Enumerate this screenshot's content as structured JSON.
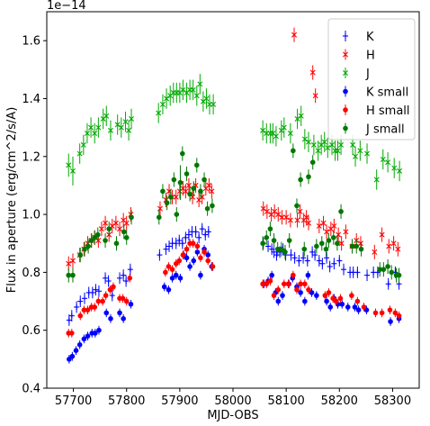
{
  "chart_data": {
    "type": "scatter",
    "xlabel": "MJD-OBS",
    "ylabel": "Flux in aperture (erg/cm^2/s/A)",
    "y_offset_label": "1e−14",
    "xlim": [
      57650,
      58350
    ],
    "ylim": [
      0.4,
      1.7
    ],
    "x_ticks": [
      57700,
      57800,
      57900,
      58000,
      58100,
      58200,
      58300
    ],
    "x_tick_labels": [
      "57700",
      "57800",
      "57900",
      "58000",
      "58100",
      "58200",
      "58300"
    ],
    "y_ticks": [
      0.4,
      0.6,
      0.8,
      1.0,
      1.2,
      1.4,
      1.6
    ],
    "y_tick_labels": [
      "0.4",
      "0.6",
      "0.8",
      "1.0",
      "1.2",
      "1.4",
      "1.6"
    ],
    "grid": false,
    "legend_position": "top-right",
    "series": [
      {
        "name": "K",
        "color": "#0000ff",
        "marker": "errbar-plus",
        "x": [
          57692,
          57697,
          57706,
          57713,
          57721,
          57729,
          57736,
          57742,
          57748,
          57760,
          57766,
          57773,
          57787,
          57794,
          57799,
          57807,
          57862,
          57874,
          57880,
          57886,
          57893,
          57899,
          57905,
          57911,
          57917,
          57923,
          57930,
          57936,
          57942,
          57948,
          57954,
          58057,
          58066,
          58073,
          58077,
          58082,
          58088,
          58094,
          58099,
          58109,
          58116,
          58124,
          58132,
          58140,
          58149,
          58154,
          58162,
          58168,
          58176,
          58182,
          58190,
          58200,
          58208,
          58220,
          58226,
          58234,
          58252,
          58264,
          58272,
          58292,
          58305,
          58312
        ],
        "y": [
          0.635,
          0.65,
          0.68,
          0.7,
          0.71,
          0.73,
          0.73,
          0.74,
          0.735,
          0.78,
          0.77,
          0.72,
          0.78,
          0.79,
          0.77,
          0.81,
          0.86,
          0.88,
          0.89,
          0.9,
          0.9,
          0.91,
          0.9,
          0.92,
          0.93,
          0.94,
          0.94,
          0.92,
          0.95,
          0.93,
          0.94,
          0.9,
          0.89,
          0.88,
          0.87,
          0.86,
          0.87,
          0.88,
          0.86,
          0.86,
          0.85,
          0.84,
          0.85,
          0.84,
          0.87,
          0.86,
          0.84,
          0.83,
          0.85,
          0.82,
          0.83,
          0.84,
          0.81,
          0.8,
          0.8,
          0.8,
          0.79,
          0.8,
          0.8,
          0.76,
          0.8,
          0.76
        ],
        "yerr": [
          0.02,
          0.02,
          0.02,
          0.02,
          0.02,
          0.02,
          0.02,
          0.02,
          0.02,
          0.02,
          0.02,
          0.02,
          0.02,
          0.02,
          0.02,
          0.02,
          0.02,
          0.02,
          0.02,
          0.02,
          0.02,
          0.02,
          0.02,
          0.02,
          0.02,
          0.02,
          0.02,
          0.02,
          0.02,
          0.02,
          0.02,
          0.02,
          0.02,
          0.02,
          0.02,
          0.02,
          0.02,
          0.02,
          0.02,
          0.02,
          0.02,
          0.02,
          0.02,
          0.02,
          0.02,
          0.02,
          0.02,
          0.02,
          0.02,
          0.02,
          0.02,
          0.02,
          0.02,
          0.02,
          0.02,
          0.02,
          0.02,
          0.02,
          0.02,
          0.02,
          0.02,
          0.02
        ]
      },
      {
        "name": "H",
        "color": "#ff0000",
        "marker": "errbar-x",
        "x": [
          57691,
          57699,
          57712,
          57720,
          57727,
          57734,
          57740,
          57747,
          57753,
          57760,
          57767,
          57773,
          57780,
          57787,
          57794,
          57800,
          57808,
          57863,
          57874,
          57880,
          57886,
          57893,
          57900,
          57906,
          57911,
          57917,
          57924,
          57930,
          57936,
          57942,
          57949,
          57955,
          57960,
          58057,
          58064,
          58072,
          58078,
          58085,
          58092,
          58100,
          58108,
          58115,
          58121,
          58126,
          58133,
          58138,
          58142,
          58150,
          58155,
          58162,
          58170,
          58176,
          58184,
          58190,
          58198,
          58204,
          58212,
          58224,
          58232,
          58240,
          58266,
          58280,
          58293,
          58302,
          58310
        ],
        "y": [
          0.83,
          0.84,
          0.86,
          0.88,
          0.9,
          0.91,
          0.92,
          0.91,
          0.95,
          0.97,
          0.93,
          0.96,
          0.97,
          0.95,
          0.98,
          0.97,
          1.0,
          1.02,
          1.05,
          1.08,
          1.06,
          1.06,
          1.08,
          1.09,
          1.08,
          1.1,
          1.06,
          1.1,
          1.05,
          1.06,
          1.09,
          1.1,
          1.08,
          1.02,
          1.01,
          1.0,
          1.01,
          1.0,
          0.99,
          0.99,
          0.98,
          1.62,
          0.98,
          1.01,
          0.98,
          0.99,
          0.97,
          1.49,
          1.41,
          0.96,
          0.97,
          0.94,
          0.95,
          0.96,
          0.93,
          0.9,
          0.94,
          0.89,
          0.91,
          0.9,
          0.87,
          0.93,
          0.89,
          0.9,
          0.88
        ],
        "yerr": [
          0.025,
          0.025,
          0.025,
          0.025,
          0.025,
          0.025,
          0.025,
          0.025,
          0.025,
          0.025,
          0.025,
          0.025,
          0.025,
          0.025,
          0.025,
          0.025,
          0.025,
          0.025,
          0.025,
          0.025,
          0.025,
          0.025,
          0.025,
          0.025,
          0.025,
          0.025,
          0.025,
          0.025,
          0.025,
          0.025,
          0.025,
          0.025,
          0.025,
          0.025,
          0.025,
          0.025,
          0.025,
          0.025,
          0.025,
          0.025,
          0.025,
          0.025,
          0.025,
          0.025,
          0.025,
          0.025,
          0.025,
          0.025,
          0.025,
          0.025,
          0.025,
          0.025,
          0.025,
          0.025,
          0.025,
          0.025,
          0.025,
          0.025,
          0.025,
          0.025,
          0.025,
          0.025,
          0.025,
          0.025,
          0.025
        ]
      },
      {
        "name": "J",
        "color": "#00aa00",
        "marker": "errbar-x",
        "x": [
          57691,
          57699,
          57712,
          57719,
          57726,
          57733,
          57740,
          57747,
          57756,
          57762,
          57770,
          57783,
          57790,
          57798,
          57804,
          57809,
          57860,
          57868,
          57875,
          57882,
          57888,
          57894,
          57900,
          57906,
          57913,
          57919,
          57925,
          57932,
          57938,
          57944,
          57950,
          57956,
          57963,
          58056,
          58063,
          58070,
          58075,
          58081,
          58091,
          58096,
          58108,
          58121,
          58128,
          58135,
          58142,
          58152,
          58160,
          58166,
          58172,
          58178,
          58186,
          58192,
          58197,
          58203,
          58225,
          58230,
          58239,
          58252,
          58270,
          58282,
          58291,
          58303,
          58313
        ],
        "y": [
          1.17,
          1.15,
          1.21,
          1.24,
          1.28,
          1.3,
          1.28,
          1.3,
          1.33,
          1.34,
          1.29,
          1.31,
          1.3,
          1.32,
          1.29,
          1.33,
          1.35,
          1.38,
          1.4,
          1.41,
          1.42,
          1.42,
          1.42,
          1.43,
          1.42,
          1.43,
          1.43,
          1.41,
          1.45,
          1.39,
          1.4,
          1.38,
          1.38,
          1.29,
          1.28,
          1.28,
          1.28,
          1.27,
          1.29,
          1.3,
          1.28,
          1.33,
          1.34,
          1.26,
          1.25,
          1.24,
          1.22,
          1.24,
          1.25,
          1.23,
          1.24,
          1.22,
          1.22,
          1.24,
          1.24,
          1.2,
          1.22,
          1.21,
          1.12,
          1.19,
          1.18,
          1.16,
          1.15
        ],
        "yerr": [
          0.04,
          0.05,
          0.035,
          0.035,
          0.035,
          0.035,
          0.035,
          0.035,
          0.035,
          0.035,
          0.035,
          0.035,
          0.035,
          0.035,
          0.035,
          0.035,
          0.035,
          0.035,
          0.035,
          0.035,
          0.035,
          0.035,
          0.035,
          0.035,
          0.035,
          0.035,
          0.035,
          0.035,
          0.035,
          0.035,
          0.035,
          0.035,
          0.035,
          0.035,
          0.035,
          0.035,
          0.035,
          0.035,
          0.035,
          0.035,
          0.035,
          0.035,
          0.035,
          0.035,
          0.035,
          0.035,
          0.035,
          0.035,
          0.035,
          0.035,
          0.035,
          0.035,
          0.035,
          0.035,
          0.035,
          0.035,
          0.035,
          0.035,
          0.035,
          0.035,
          0.035,
          0.035,
          0.035
        ]
      },
      {
        "name": "K small",
        "color": "#0000ff",
        "marker": "errbar-dot",
        "x": [
          57692,
          57698,
          57705,
          57712,
          57720,
          57727,
          57735,
          57741,
          57748,
          57762,
          57770,
          57787,
          57794,
          57808,
          57871,
          57879,
          57886,
          57893,
          57901,
          57907,
          57913,
          57919,
          57926,
          57933,
          57939,
          57946,
          57953,
          57960,
          58058,
          58066,
          58073,
          58080,
          58085,
          58093,
          58105,
          58112,
          58120,
          58127,
          58135,
          58141,
          58148,
          58157,
          58176,
          58183,
          58190,
          58197,
          58205,
          58216,
          58229,
          58236,
          58251,
          58296,
          58312
        ],
        "y": [
          0.5,
          0.51,
          0.53,
          0.55,
          0.57,
          0.58,
          0.59,
          0.59,
          0.6,
          0.66,
          0.64,
          0.66,
          0.64,
          0.69,
          0.75,
          0.74,
          0.78,
          0.79,
          0.78,
          0.86,
          0.85,
          0.82,
          0.84,
          0.87,
          0.79,
          0.88,
          0.86,
          0.82,
          0.76,
          0.77,
          0.79,
          0.73,
          0.7,
          0.72,
          0.76,
          0.78,
          0.75,
          0.73,
          0.7,
          0.79,
          0.73,
          0.72,
          0.7,
          0.68,
          0.71,
          0.69,
          0.69,
          0.68,
          0.68,
          0.67,
          0.67,
          0.63,
          0.64
        ],
        "yerr": [
          0.015,
          0.015,
          0.015,
          0.015,
          0.015,
          0.015,
          0.015,
          0.015,
          0.015,
          0.015,
          0.015,
          0.015,
          0.015,
          0.015,
          0.015,
          0.015,
          0.015,
          0.015,
          0.015,
          0.015,
          0.015,
          0.015,
          0.015,
          0.015,
          0.015,
          0.015,
          0.015,
          0.015,
          0.015,
          0.015,
          0.015,
          0.015,
          0.015,
          0.015,
          0.015,
          0.015,
          0.015,
          0.015,
          0.015,
          0.015,
          0.015,
          0.015,
          0.015,
          0.015,
          0.015,
          0.015,
          0.015,
          0.015,
          0.015,
          0.015,
          0.015,
          0.015,
          0.015
        ]
      },
      {
        "name": "H small",
        "color": "#ff0000",
        "marker": "errbar-dot",
        "x": [
          57691,
          57697,
          57713,
          57720,
          57727,
          57734,
          57740,
          57747,
          57755,
          57761,
          57769,
          57775,
          57787,
          57793,
          57800,
          57806,
          57873,
          57879,
          57886,
          57893,
          57899,
          57906,
          57913,
          57919,
          57925,
          57933,
          57939,
          57946,
          57953,
          57962,
          58056,
          58063,
          58070,
          58077,
          58085,
          58096,
          58104,
          58113,
          58120,
          58127,
          58135,
          58142,
          58173,
          58180,
          58188,
          58194,
          58202,
          58223,
          58234,
          58246,
          58268,
          58280,
          58295,
          58305,
          58312
        ],
        "y": [
          0.59,
          0.59,
          0.65,
          0.67,
          0.67,
          0.68,
          0.68,
          0.7,
          0.7,
          0.72,
          0.74,
          0.75,
          0.71,
          0.71,
          0.7,
          0.78,
          0.8,
          0.82,
          0.81,
          0.83,
          0.84,
          0.86,
          0.88,
          0.9,
          0.9,
          0.89,
          0.85,
          0.87,
          0.84,
          0.82,
          0.76,
          0.76,
          0.77,
          0.72,
          0.74,
          0.76,
          0.76,
          0.79,
          0.74,
          0.76,
          0.76,
          0.74,
          0.72,
          0.73,
          0.71,
          0.7,
          0.71,
          0.72,
          0.7,
          0.68,
          0.66,
          0.66,
          0.67,
          0.66,
          0.65
        ],
        "yerr": [
          0.015,
          0.015,
          0.015,
          0.015,
          0.015,
          0.015,
          0.015,
          0.015,
          0.015,
          0.015,
          0.015,
          0.015,
          0.015,
          0.015,
          0.015,
          0.015,
          0.015,
          0.015,
          0.015,
          0.015,
          0.015,
          0.015,
          0.015,
          0.015,
          0.015,
          0.015,
          0.015,
          0.015,
          0.015,
          0.015,
          0.015,
          0.015,
          0.015,
          0.015,
          0.015,
          0.015,
          0.015,
          0.015,
          0.015,
          0.015,
          0.015,
          0.015,
          0.015,
          0.015,
          0.015,
          0.015,
          0.015,
          0.015,
          0.015,
          0.015,
          0.015,
          0.015,
          0.015,
          0.015,
          0.015
        ]
      },
      {
        "name": "J small",
        "color": "#007700",
        "marker": "errbar-dot",
        "x": [
          57691,
          57699,
          57713,
          57721,
          57728,
          57734,
          57740,
          57746,
          57760,
          57767,
          57781,
          57795,
          57800,
          57809,
          57861,
          57868,
          57876,
          57883,
          57889,
          57894,
          57901,
          57905,
          57913,
          57919,
          57926,
          57932,
          57939,
          57946,
          57952,
          57961,
          58056,
          58063,
          58070,
          58077,
          58084,
          58091,
          58098,
          58106,
          58113,
          58120,
          58127,
          58134,
          58142,
          58150,
          58157,
          58167,
          58175,
          58180,
          58189,
          58196,
          58203,
          58224,
          58232,
          58241,
          58276,
          58283,
          58291,
          58298,
          58307,
          58312
        ],
        "y": [
          0.79,
          0.79,
          0.86,
          0.88,
          0.89,
          0.91,
          0.92,
          0.93,
          0.91,
          0.95,
          0.9,
          0.94,
          0.92,
          0.99,
          0.99,
          1.08,
          1.04,
          1.06,
          1.12,
          1.0,
          1.11,
          1.21,
          1.14,
          1.07,
          1.09,
          1.17,
          1.08,
          1.12,
          1.02,
          1.03,
          0.9,
          0.92,
          0.95,
          0.91,
          0.88,
          0.88,
          0.87,
          0.91,
          1.22,
          1.03,
          1.12,
          0.88,
          1.13,
          1.18,
          0.89,
          0.9,
          0.88,
          0.91,
          0.92,
          0.9,
          1.01,
          0.89,
          0.89,
          0.88,
          0.81,
          0.81,
          0.82,
          0.8,
          0.79,
          0.79
        ],
        "yerr": [
          0.025,
          0.025,
          0.025,
          0.025,
          0.025,
          0.025,
          0.025,
          0.025,
          0.025,
          0.025,
          0.025,
          0.025,
          0.025,
          0.025,
          0.025,
          0.025,
          0.025,
          0.025,
          0.025,
          0.025,
          0.06,
          0.025,
          0.025,
          0.025,
          0.025,
          0.025,
          0.025,
          0.025,
          0.025,
          0.025,
          0.025,
          0.025,
          0.025,
          0.025,
          0.025,
          0.025,
          0.025,
          0.025,
          0.025,
          0.025,
          0.025,
          0.025,
          0.025,
          0.025,
          0.025,
          0.025,
          0.025,
          0.025,
          0.025,
          0.025,
          0.025,
          0.025,
          0.025,
          0.025,
          0.025,
          0.025,
          0.025,
          0.025,
          0.025,
          0.025
        ]
      }
    ]
  }
}
